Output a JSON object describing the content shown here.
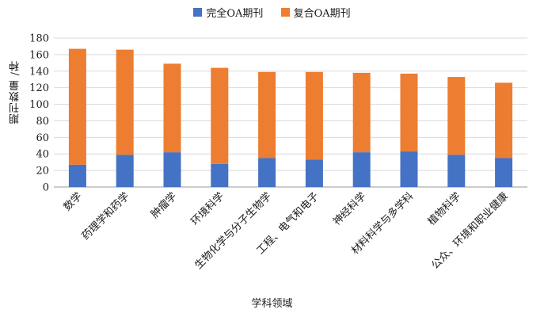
{
  "chart_data": {
    "type": "bar",
    "stacked": true,
    "title": "",
    "xlabel": "学科领域",
    "ylabel": "期刊数量 /种",
    "ylim": [
      0,
      180
    ],
    "yticks": [
      0,
      20,
      40,
      60,
      80,
      100,
      120,
      140,
      160,
      180
    ],
    "grid": true,
    "legend_position": "top-center",
    "categories": [
      "数学",
      "药理学和药学",
      "肿瘤学",
      "环境科学",
      "生物化学与分子生物学",
      "工程、电气和电子",
      "神经科学",
      "材料科学与多学科",
      "植物科学",
      "公众、环境和职业健康"
    ],
    "series": [
      {
        "name": "完全OA期刊",
        "color": "#4472c4",
        "values": [
          27,
          39,
          42,
          28,
          35,
          33,
          42,
          43,
          39,
          35
        ]
      },
      {
        "name": "复合OA期刊",
        "color": "#ed7d31",
        "values": [
          140,
          127,
          107,
          116,
          104,
          106,
          96,
          94,
          94,
          91
        ]
      }
    ]
  }
}
